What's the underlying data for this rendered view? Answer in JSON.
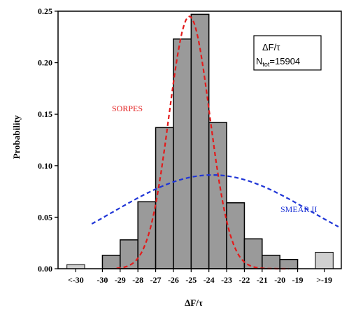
{
  "chart_data": {
    "type": "bar",
    "xlabel": "ΔF/τ",
    "ylabel": "Probability",
    "ylim": [
      0,
      0.25
    ],
    "y_ticks": [
      "0.00",
      "0.05",
      "0.10",
      "0.15",
      "0.20",
      "0.25"
    ],
    "y_tick_values": [
      0,
      0.05,
      0.1,
      0.15,
      0.2,
      0.25
    ],
    "x_tick_labels": [
      "<-30",
      "-30",
      "-29",
      "-28",
      "-27",
      "-26",
      "-25",
      "-24",
      "-23",
      "-22",
      "-21",
      "-20",
      "-19",
      ">-19"
    ],
    "x_tick_values": [
      -31.5,
      -30,
      -29,
      -28,
      -27,
      -26,
      -25,
      -24,
      -23,
      -22,
      -21,
      -20,
      -19,
      -17.5
    ],
    "xlim": [
      -32.5,
      -16.5
    ],
    "bins": [
      {
        "from": -30,
        "to": -29,
        "value": 0.013
      },
      {
        "from": -29,
        "to": -28,
        "value": 0.028
      },
      {
        "from": -28,
        "to": -27,
        "value": 0.065
      },
      {
        "from": -27,
        "to": -26,
        "value": 0.137
      },
      {
        "from": -26,
        "to": -25,
        "value": 0.223
      },
      {
        "from": -25,
        "to": -24,
        "value": 0.247
      },
      {
        "from": -24,
        "to": -23,
        "value": 0.142
      },
      {
        "from": -23,
        "to": -22,
        "value": 0.064
      },
      {
        "from": -22,
        "to": -21,
        "value": 0.029
      },
      {
        "from": -21,
        "to": -20,
        "value": 0.013
      },
      {
        "from": -20,
        "to": -19,
        "value": 0.009
      }
    ],
    "outlier_bins": [
      {
        "label": "<-30",
        "from": -32.0,
        "to": -31.0,
        "value": 0.004
      },
      {
        "label": ">-19",
        "from": -18.0,
        "to": -17.0,
        "value": 0.016
      }
    ],
    "curves": [
      {
        "name": "SORPES",
        "color": "#e31b1b",
        "type": "gaussian",
        "mean": -25.1,
        "sd": 1.15,
        "peak": 0.245
      },
      {
        "name": "SMEAR II",
        "color": "#1f35d6",
        "type": "gaussian",
        "mean": -23.8,
        "sd": 5.6,
        "peak": 0.091
      }
    ],
    "annotations": {
      "sorpes_label": "SORPES",
      "smear_label": "SMEAR II",
      "box_line1": "ΔF/τ",
      "box_line2_main": "N",
      "box_line2_sub": "tot",
      "box_line2_value": "=15904"
    },
    "colors": {
      "bar_fill": "#9a9a9a",
      "outlier_fill": "#cfcfcf",
      "sorpes": "#e31b1b",
      "smear": "#1f35d6"
    }
  }
}
